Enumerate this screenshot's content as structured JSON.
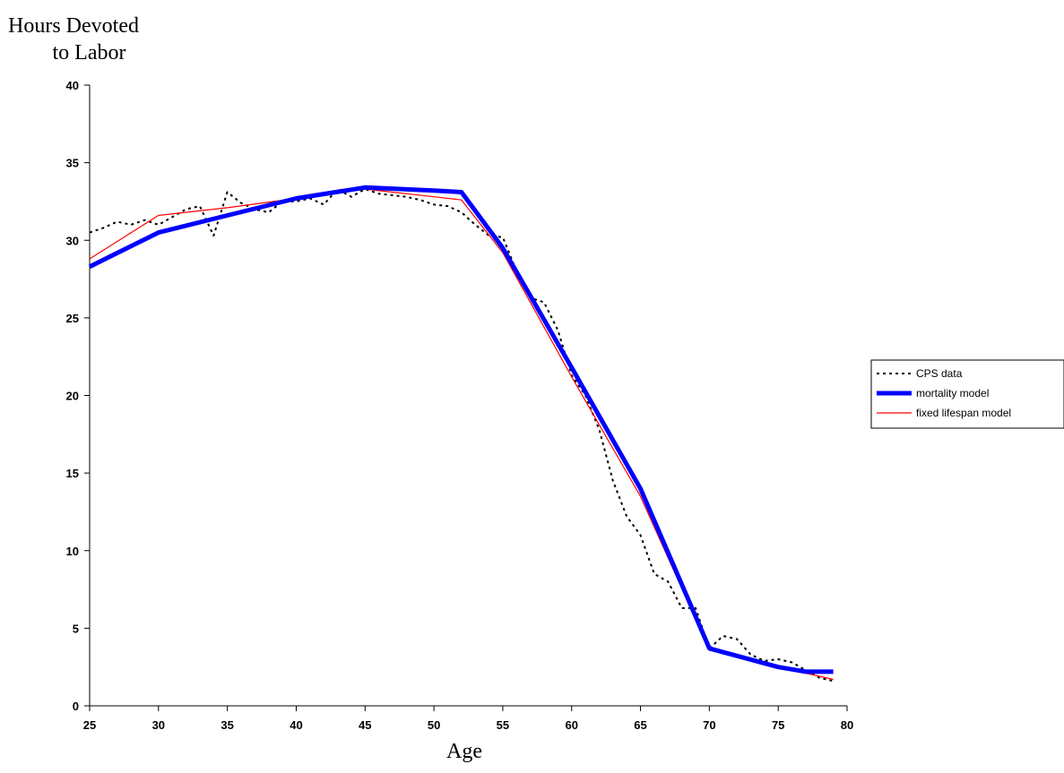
{
  "chart_data": {
    "type": "line",
    "ylabel_lines": [
      "Hours Devoted",
      "to Labor"
    ],
    "xlabel": "Age",
    "xlim": [
      25,
      80
    ],
    "ylim": [
      0,
      40
    ],
    "xticks": [
      25,
      30,
      35,
      40,
      45,
      50,
      55,
      60,
      65,
      70,
      75,
      80
    ],
    "yticks": [
      0,
      5,
      10,
      15,
      20,
      25,
      30,
      35,
      40
    ],
    "grid": false,
    "legend_position": "right",
    "series": [
      {
        "name": "CPS data",
        "color": "#000000",
        "style": "dotted",
        "x": [
          25,
          26,
          27,
          28,
          29,
          30,
          31,
          32,
          33,
          34,
          35,
          36,
          37,
          38,
          39,
          40,
          41,
          42,
          43,
          44,
          45,
          46,
          47,
          48,
          49,
          50,
          51,
          52,
          53,
          54,
          55,
          56,
          57,
          58,
          59,
          60,
          61,
          62,
          63,
          64,
          65,
          66,
          67,
          68,
          69,
          70,
          71,
          72,
          73,
          74,
          75,
          76,
          77,
          78,
          79
        ],
        "y": [
          30.5,
          30.8,
          31.2,
          31.0,
          31.3,
          31.0,
          31.5,
          32.0,
          32.2,
          30.3,
          33.1,
          32.4,
          32.0,
          31.8,
          32.5,
          32.5,
          32.7,
          32.3,
          33.3,
          32.8,
          33.3,
          33.0,
          32.9,
          32.8,
          32.6,
          32.3,
          32.2,
          31.8,
          31.0,
          30.3,
          30.2,
          28.0,
          26.3,
          26.0,
          24.2,
          21.3,
          20.0,
          17.8,
          14.5,
          12.2,
          11.0,
          8.5,
          8.0,
          6.3,
          6.3,
          3.7,
          4.5,
          4.3,
          3.3,
          2.9,
          3.0,
          2.8,
          2.3,
          1.8,
          1.6
        ]
      },
      {
        "name": "mortality model",
        "color": "#0000ff",
        "style": "solid-thick",
        "x": [
          25,
          30,
          35,
          40,
          45,
          50,
          52,
          55,
          60,
          65,
          70,
          75,
          77,
          79
        ],
        "y": [
          28.3,
          30.5,
          31.6,
          32.7,
          33.4,
          33.2,
          33.1,
          29.5,
          21.8,
          14.0,
          3.7,
          2.5,
          2.2,
          2.2
        ]
      },
      {
        "name": "fixed lifespan model",
        "color": "#ff0000",
        "style": "solid-thin",
        "x": [
          25,
          30,
          35,
          40,
          45,
          50,
          52,
          55,
          60,
          65,
          70,
          75,
          79
        ],
        "y": [
          28.8,
          31.6,
          32.1,
          32.7,
          33.3,
          32.8,
          32.6,
          29.2,
          21.2,
          13.5,
          3.6,
          2.5,
          1.7
        ]
      }
    ]
  }
}
